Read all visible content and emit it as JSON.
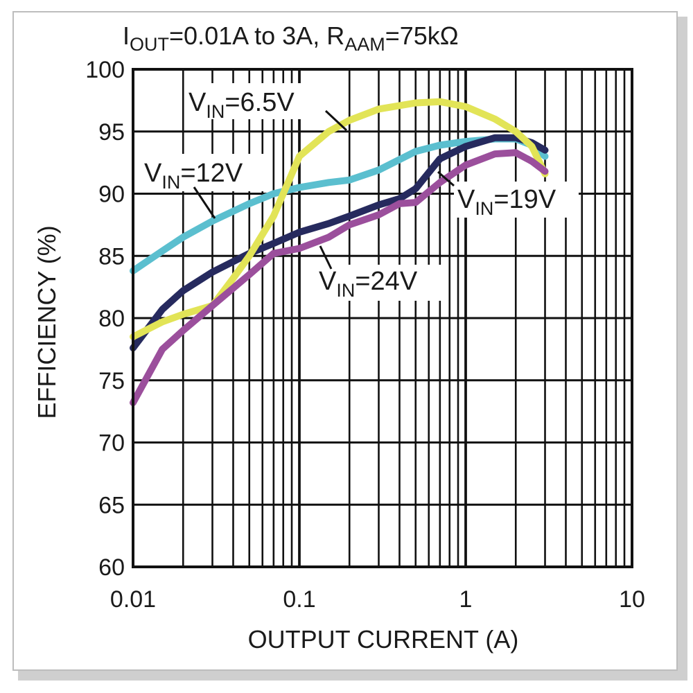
{
  "chart_data": {
    "type": "line",
    "title": {
      "i_main": "I",
      "i_sub": "OUT",
      "middle": "=0.01A to 3A, R",
      "r_sub": "AAM",
      "end": "=75kΩ"
    },
    "xlabel": "OUTPUT CURRENT (A)",
    "ylabel": "EFFICIENCY (%)",
    "x_scale": "log",
    "xlim": [
      0.01,
      10
    ],
    "ylim": [
      60,
      100
    ],
    "x_ticks": [
      {
        "value": 0.01,
        "label": "0.01"
      },
      {
        "value": 0.1,
        "label": "0.1"
      },
      {
        "value": 1,
        "label": "1"
      },
      {
        "value": 10,
        "label": "10"
      }
    ],
    "y_ticks": [
      {
        "value": 100,
        "label": "100"
      },
      {
        "value": 95,
        "label": "95"
      },
      {
        "value": 90,
        "label": "90"
      },
      {
        "value": 85,
        "label": "85"
      },
      {
        "value": 80,
        "label": "80"
      },
      {
        "value": 75,
        "label": "75"
      },
      {
        "value": 70,
        "label": "70"
      },
      {
        "value": 65,
        "label": "65"
      },
      {
        "value": 60,
        "label": "60"
      }
    ],
    "grid": true,
    "series": [
      {
        "key": "vin12",
        "label_main": "V",
        "label_sub": "IN",
        "label_rest": "=12V",
        "color": "#5bbfcf",
        "x": [
          0.01,
          0.015,
          0.02,
          0.03,
          0.05,
          0.07,
          0.1,
          0.15,
          0.2,
          0.3,
          0.5,
          0.7,
          1,
          1.5,
          2,
          2.5,
          3
        ],
        "y": [
          83.8,
          85.4,
          86.5,
          87.8,
          89.2,
          90.0,
          90.5,
          90.9,
          91.1,
          91.9,
          93.4,
          93.9,
          94.2,
          94.4,
          94.4,
          93.9,
          93.0
        ]
      },
      {
        "key": "vin19",
        "label_main": "V",
        "label_sub": "IN",
        "label_rest": "=19V",
        "color": "#262a5e",
        "x": [
          0.01,
          0.015,
          0.02,
          0.03,
          0.05,
          0.07,
          0.1,
          0.15,
          0.2,
          0.3,
          0.4,
          0.5,
          0.7,
          1,
          1.5,
          2,
          2.5,
          3
        ],
        "y": [
          77.6,
          80.7,
          82.2,
          83.7,
          85.2,
          86.0,
          86.9,
          87.6,
          88.2,
          89.1,
          89.6,
          90.4,
          92.8,
          93.8,
          94.5,
          94.5,
          94.1,
          93.5
        ]
      },
      {
        "key": "vin6_5",
        "label_main": "V",
        "label_sub": "IN",
        "label_rest": "=6.5V",
        "color": "#e2e457",
        "x": [
          0.01,
          0.015,
          0.02,
          0.03,
          0.04,
          0.05,
          0.07,
          0.1,
          0.15,
          0.2,
          0.3,
          0.5,
          0.7,
          1,
          1.5,
          2,
          2.5,
          3
        ],
        "y": [
          78.5,
          79.7,
          80.3,
          81.0,
          83.2,
          85.0,
          88.2,
          93.0,
          95.0,
          95.9,
          96.8,
          97.3,
          97.4,
          97.0,
          96.0,
          95.0,
          93.8,
          91.6
        ]
      },
      {
        "key": "vin24",
        "label_main": "V",
        "label_sub": "IN",
        "label_rest": "=24V",
        "color": "#9b4f9c",
        "x": [
          0.01,
          0.015,
          0.02,
          0.03,
          0.05,
          0.07,
          0.1,
          0.15,
          0.2,
          0.3,
          0.4,
          0.5,
          0.7,
          1,
          1.5,
          2,
          2.5,
          3
        ],
        "y": [
          73.2,
          77.5,
          79.0,
          81.0,
          83.5,
          85.2,
          85.6,
          86.5,
          87.5,
          88.3,
          89.2,
          89.3,
          90.9,
          92.3,
          93.2,
          93.3,
          92.6,
          91.8
        ]
      }
    ]
  }
}
